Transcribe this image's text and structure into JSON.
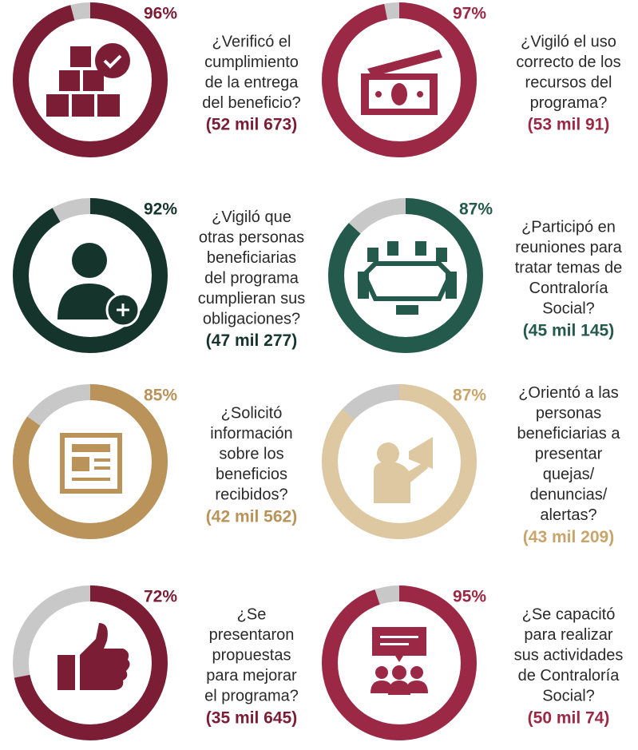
{
  "chart_data": [
    {
      "type": "donut",
      "values": [
        96
      ],
      "value_labels": [
        "96%"
      ],
      "color": "#7a1d35",
      "title": [
        "¿Verificó el",
        "cumplimiento",
        "de la entrega",
        "del beneficio?"
      ],
      "annotation": "(52 mil 673)"
    },
    {
      "type": "donut",
      "values": [
        97
      ],
      "value_labels": [
        "97%"
      ],
      "color": "#9b2845",
      "title": [
        "¿Vigiló el uso",
        "correcto de los",
        "recursos del",
        "programa?"
      ],
      "annotation": "(53 mil 91)"
    },
    {
      "type": "donut",
      "values": [
        92
      ],
      "value_labels": [
        "92%"
      ],
      "color": "#15342c",
      "title": [
        "¿Vigiló que",
        "otras personas",
        "beneficiarias",
        "del programa",
        "cumplieran sus",
        "obligaciones?"
      ],
      "annotation": "(47 mil 277)"
    },
    {
      "type": "donut",
      "values": [
        87
      ],
      "value_labels": [
        "87%"
      ],
      "color": "#245a4b",
      "title": [
        "¿Participó en",
        "reuniones para",
        "tratar temas de",
        "Contraloría",
        "Social?"
      ],
      "annotation": "(45 mil 145)"
    },
    {
      "type": "donut",
      "values": [
        85
      ],
      "value_labels": [
        "85%"
      ],
      "color": "#b9935a",
      "title": [
        "¿Solicitó",
        "información",
        "sobre los",
        "beneficios",
        "recibidos?"
      ],
      "annotation": "(42 mil 562)"
    },
    {
      "type": "donut",
      "values": [
        87
      ],
      "value_labels": [
        "87%"
      ],
      "color": "#dec8a2",
      "title": [
        "¿Orientó a las",
        "personas",
        "beneficiarias a",
        "presentar",
        "quejas/",
        "denuncias/",
        "alertas?"
      ],
      "annotation": "(43 mil 209)"
    },
    {
      "type": "donut",
      "values": [
        72
      ],
      "value_labels": [
        "72%"
      ],
      "color": "#7a1d35",
      "title": [
        "¿Se",
        "presentaron",
        "propuestas",
        "para mejorar",
        "el programa?"
      ],
      "annotation": "(35 mil 645)"
    },
    {
      "type": "donut",
      "values": [
        95
      ],
      "value_labels": [
        "95%"
      ],
      "color": "#9b2845",
      "title": [
        "¿Se capacitó",
        "para realizar",
        "sus actividades",
        "de Contraloría",
        "Social?"
      ],
      "annotation": "(50 mil 74)"
    }
  ]
}
